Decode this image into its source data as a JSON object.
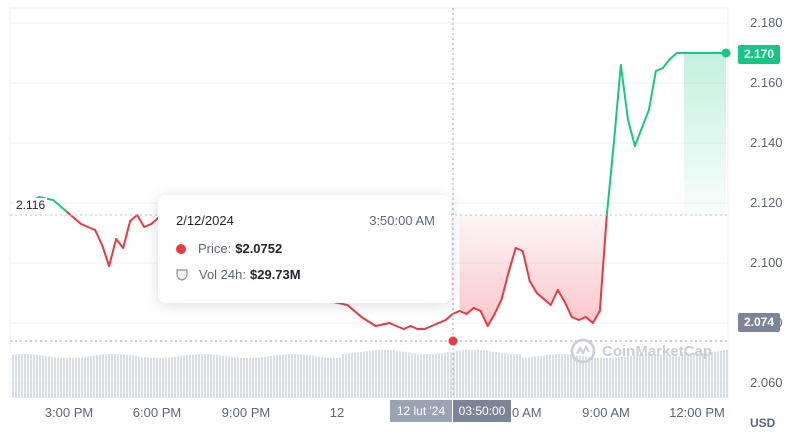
{
  "chart_data": {
    "type": "line",
    "x_tick_labels": [
      "3:00 PM",
      "6:00 PM",
      "9:00 PM",
      "12",
      "03:50:00",
      "9:00 AM",
      "12:00 PM"
    ],
    "y_ticks": [
      "2.180",
      "2.160",
      "2.140",
      "2.120",
      "2.100",
      "2.080",
      "2.060"
    ],
    "ylim": [
      2.055,
      2.185
    ],
    "currency": "USD",
    "reference_price": "2.116",
    "current_price": "2.170",
    "crosshair_price": "2.074",
    "colors": {
      "up": "#16c784",
      "down": "#ea3943",
      "volume": "#d9dde5"
    },
    "series": [
      {
        "x": [
          0,
          0.02,
          0.04,
          0.06,
          0.08,
          0.1,
          0.11,
          0.12,
          0.13,
          0.14,
          0.15,
          0.16,
          0.17,
          0.18,
          0.19,
          0.2,
          0.21,
          0.22,
          0.23,
          0.24,
          0.25,
          0.26,
          0.27,
          0.28,
          0.29,
          0.3,
          0.32,
          0.34,
          0.36,
          0.38,
          0.4,
          0.42,
          0.44,
          0.46,
          0.48,
          0.5,
          0.52,
          0.53,
          0.54,
          0.55,
          0.56,
          0.57,
          0.58,
          0.59,
          0.6,
          0.61,
          0.62,
          0.63,
          0.64,
          0.65,
          0.66,
          0.67,
          0.68,
          0.69,
          0.7,
          0.71,
          0.72,
          0.73,
          0.74,
          0.75,
          0.76,
          0.77,
          0.78,
          0.79,
          0.8,
          0.81,
          0.82,
          0.83,
          0.84,
          0.85,
          0.86,
          0.87,
          0.88,
          0.89,
          0.9,
          0.91,
          0.92,
          0.93,
          0.94,
          0.95,
          0.96,
          0.97,
          0.98,
          0.99,
          1.0
        ],
        "y": [
          2.119,
          2.122,
          2.121,
          2.117,
          2.113,
          2.111,
          2.106,
          2.099,
          2.108,
          2.105,
          2.114,
          2.116,
          2.112,
          2.113,
          2.115,
          2.11,
          2.103,
          2.101,
          2.099,
          2.097,
          2.098,
          2.096,
          2.099,
          2.097,
          2.098,
          2.095,
          2.093,
          2.094,
          2.092,
          2.09,
          2.091,
          2.089,
          2.087,
          2.086,
          2.082,
          2.079,
          2.08,
          2.079,
          2.078,
          2.079,
          2.078,
          2.078,
          2.079,
          2.08,
          2.081,
          2.083,
          2.084,
          2.083,
          2.085,
          2.084,
          2.079,
          2.083,
          2.088,
          2.097,
          2.105,
          2.104,
          2.094,
          2.09,
          2.088,
          2.086,
          2.091,
          2.087,
          2.082,
          2.081,
          2.082,
          2.08,
          2.084,
          2.116,
          2.14,
          2.166,
          2.148,
          2.139,
          2.145,
          2.151,
          2.164,
          2.165,
          2.168,
          2.17,
          2.17,
          2.17,
          2.17,
          2.17,
          2.17,
          2.17,
          2.17
        ]
      }
    ]
  },
  "tooltip": {
    "date": "2/12/2024",
    "time": "3:50:00 AM",
    "price_label": "Price:",
    "price_value": "$2.0752",
    "vol_label": "Vol 24h:",
    "vol_value": "$29.73M"
  },
  "crosshair": {
    "date": "12 lut '24",
    "time": "03:50:00"
  },
  "watermark": "CoinMarketCap",
  "currency_label": "USD"
}
